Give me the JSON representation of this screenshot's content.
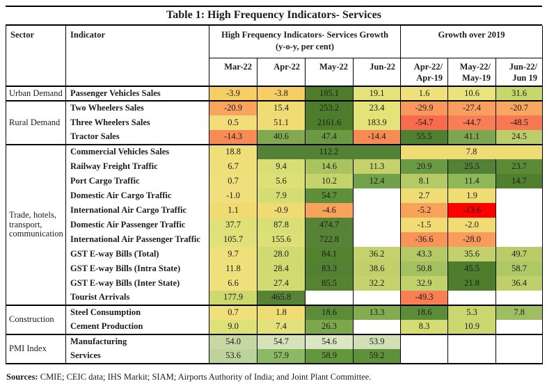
{
  "title": "Table 1: High Frequency Indicators- Services",
  "header": {
    "sector": "Sector",
    "indicator": "Indicator",
    "group1": "High Frequency Indicators- Services Growth",
    "group1_sub": "(y-o-y, per cent)",
    "group2": "Growth over 2019",
    "cols": [
      "Mar-22",
      "Apr-22",
      "May-22",
      "Jun-22",
      "Apr-22/\nApr-19",
      "May-22/\nMay-19",
      "Jun-22/\nJun 19"
    ]
  },
  "legend_colors": {
    "strong_negative": "#FE0000",
    "negative": "#F8A25C",
    "neutral": "#F0DC74",
    "positive": "#A9C35F",
    "strong_positive": "#538135"
  },
  "sections": [
    {
      "sector": "Urban Demand",
      "rows": [
        {
          "indicator": "Passenger Vehicles Sales",
          "cells": [
            {
              "v": "-3.9",
              "c": "#F6CE65"
            },
            {
              "v": "-3.8",
              "c": "#F6CE65"
            },
            {
              "v": "185.1",
              "c": "#4E7E2B"
            },
            {
              "v": "19.1",
              "c": "#E4E27A"
            },
            {
              "v": "1.6",
              "c": "#EFE17C"
            },
            {
              "v": "10.6",
              "c": "#E9E47E"
            },
            {
              "v": "31.6",
              "c": "#C6D76C"
            }
          ]
        }
      ]
    },
    {
      "sector": "Rural Demand",
      "rows": [
        {
          "indicator": "Two Wheelers Sales",
          "cells": [
            {
              "v": "-20.9",
              "c": "#F9A45E"
            },
            {
              "v": "15.4",
              "c": "#F0DC74"
            },
            {
              "v": "253.2",
              "c": "#4D7D2B"
            },
            {
              "v": "23.4",
              "c": "#E3E378"
            },
            {
              "v": "-29.9",
              "c": "#F8985C"
            },
            {
              "v": "-27.4",
              "c": "#F89E5E"
            },
            {
              "v": "-20.7",
              "c": "#F9A660"
            }
          ]
        },
        {
          "indicator": "Three Wheelers Sales",
          "cells": [
            {
              "v": "0.5",
              "c": "#F2DD78"
            },
            {
              "v": "51.1",
              "c": "#F0DC74"
            },
            {
              "v": "2161.6",
              "c": "#4D7D2B"
            },
            {
              "v": "183.9",
              "c": "#E3E377"
            },
            {
              "v": "-54.7",
              "c": "#F96B4D"
            },
            {
              "v": "-44.7",
              "c": "#F87E55"
            },
            {
              "v": "-48.5",
              "c": "#F87852"
            }
          ]
        },
        {
          "indicator": "Tractor Sales",
          "cells": [
            {
              "v": "-14.3",
              "c": "#F88B54"
            },
            {
              "v": "40.6",
              "c": "#82A951"
            },
            {
              "v": "47.4",
              "c": "#6B9A43"
            },
            {
              "v": "-14.4",
              "c": "#F88B54"
            },
            {
              "v": "55.5",
              "c": "#4E8030"
            },
            {
              "v": "41.1",
              "c": "#7EA64F"
            },
            {
              "v": "24.5",
              "c": "#BCCD69"
            }
          ]
        }
      ]
    },
    {
      "sector": "Trade, hotels,\ntransport,\ncommunication",
      "rows": [
        {
          "indicator": "Commercial Vehicles Sales",
          "cells": [
            {
              "v": "18.8",
              "c": "#EFDF78"
            },
            {
              "v": "112.2",
              "c": "#538135",
              "span": 3
            },
            {
              "v": "7.8",
              "c": "#F0DC74",
              "span": 3
            }
          ]
        },
        {
          "indicator": "Railway Freight Traffic",
          "cells": [
            {
              "v": "6.7",
              "c": "#EFDF78"
            },
            {
              "v": "9.4",
              "c": "#D8DE74"
            },
            {
              "v": "14.6",
              "c": "#A9C35F"
            },
            {
              "v": "11.3",
              "c": "#C6D16C"
            },
            {
              "v": "20.9",
              "c": "#6A9B43"
            },
            {
              "v": "25.5",
              "c": "#538135"
            },
            {
              "v": "23.7",
              "c": "#5C8B37"
            }
          ]
        },
        {
          "indicator": "Port Cargo Traffic",
          "cells": [
            {
              "v": "0.7",
              "c": "#F0E07C"
            },
            {
              "v": "5.6",
              "c": "#DCE076"
            },
            {
              "v": "10.2",
              "c": "#C4D36A"
            },
            {
              "v": "12.4",
              "c": "#71A14A"
            },
            {
              "v": "8.1",
              "c": "#B5CA67"
            },
            {
              "v": "11.4",
              "c": "#8FB858"
            },
            {
              "v": "14.7",
              "c": "#507F2E"
            }
          ]
        },
        {
          "indicator": "Domestic Air Cargo Traffic",
          "cells": [
            {
              "v": "-1.0",
              "c": "#F1DF7B"
            },
            {
              "v": "7.9",
              "c": "#D5DC72"
            },
            {
              "v": "54.7",
              "c": "#5E8F3A"
            },
            {
              "v": "",
              "c": "#FFFFFF"
            },
            {
              "v": "2.7",
              "c": "#F0DC74"
            },
            {
              "v": "1.9",
              "c": "#F0DC74"
            },
            {
              "v": "",
              "c": "#FFFFFF"
            }
          ]
        },
        {
          "indicator": "International Air Cargo Traffic",
          "cells": [
            {
              "v": "1.1",
              "c": "#F0DB72"
            },
            {
              "v": "-0.9",
              "c": "#F0DB72"
            },
            {
              "v": "-4.6",
              "c": "#F8A25C"
            },
            {
              "v": "",
              "c": "#FFFFFF"
            },
            {
              "v": "-5.2",
              "c": "#F8A25C"
            },
            {
              "v": "-13.6",
              "c": "#FE0000"
            },
            {
              "v": "",
              "c": "#FFFFFF"
            }
          ]
        },
        {
          "indicator": "Domestic Air Passenger Traffic",
          "cells": [
            {
              "v": "37.7",
              "c": "#DFE077"
            },
            {
              "v": "87.8",
              "c": "#D9DF75"
            },
            {
              "v": "474.7",
              "c": "#568336"
            },
            {
              "v": "",
              "c": "#FFFFFF"
            },
            {
              "v": "-1.5",
              "c": "#F1DC73"
            },
            {
              "v": "-2.0",
              "c": "#F1DC73"
            },
            {
              "v": "",
              "c": "#FFFFFF"
            }
          ]
        },
        {
          "indicator": "International Air Passenger Traffic",
          "cells": [
            {
              "v": "105.7",
              "c": "#E0E17A"
            },
            {
              "v": "155.6",
              "c": "#DCE076"
            },
            {
              "v": "722.8",
              "c": "#568336"
            },
            {
              "v": "",
              "c": "#FFFFFF"
            },
            {
              "v": "-36.6",
              "c": "#F8935A"
            },
            {
              "v": "-28.0",
              "c": "#F89B5C"
            },
            {
              "v": "",
              "c": "#FFFFFF"
            }
          ]
        },
        {
          "indicator": "GST E-way Bills (Total)",
          "cells": [
            {
              "v": "9.7",
              "c": "#EFE07B"
            },
            {
              "v": "28.0",
              "c": "#D0DA71"
            },
            {
              "v": "84.1",
              "c": "#54832F"
            },
            {
              "v": "36.2",
              "c": "#C4D16C"
            },
            {
              "v": "43.3",
              "c": "#B5C966"
            },
            {
              "v": "35.6",
              "c": "#C3D16C"
            },
            {
              "v": "49.7",
              "c": "#B9CC68"
            }
          ]
        },
        {
          "indicator": "GST E-way Bills (Intra State)",
          "cells": [
            {
              "v": "11.8",
              "c": "#EEE07B"
            },
            {
              "v": "28.4",
              "c": "#D0DA71"
            },
            {
              "v": "83.3",
              "c": "#538134"
            },
            {
              "v": "38.6",
              "c": "#C2D06B"
            },
            {
              "v": "50.8",
              "c": "#A3C160"
            },
            {
              "v": "45.5",
              "c": "#4E7E2D"
            },
            {
              "v": "58.7",
              "c": "#AFC765"
            }
          ]
        },
        {
          "indicator": "GST E-way Bills (Inter State)",
          "cells": [
            {
              "v": "6.6",
              "c": "#EFE07B"
            },
            {
              "v": "27.4",
              "c": "#D2DB72"
            },
            {
              "v": "85.5",
              "c": "#55832F"
            },
            {
              "v": "32.2",
              "c": "#C6D26D"
            },
            {
              "v": "32.9",
              "c": "#C3D16B"
            },
            {
              "v": "21.8",
              "c": "#4E7E2D"
            },
            {
              "v": "36.4",
              "c": "#BFCF6A"
            }
          ]
        },
        {
          "indicator": "Tourist Arrivals",
          "cells": [
            {
              "v": "177.9",
              "c": "#CDD96F"
            },
            {
              "v": "465.8",
              "c": "#568336"
            },
            {
              "v": "",
              "c": "#FFFFFF"
            },
            {
              "v": "",
              "c": "#FFFFFF"
            },
            {
              "v": "-49.3",
              "c": "#F97E53"
            },
            {
              "v": "",
              "c": "#FFFFFF"
            },
            {
              "v": "",
              "c": "#FFFFFF"
            }
          ]
        }
      ]
    },
    {
      "sector": "Construction",
      "rows": [
        {
          "indicator": "Steel Consumption",
          "cells": [
            {
              "v": "0.7",
              "c": "#F0E07C"
            },
            {
              "v": "1.8",
              "c": "#F0DC74"
            },
            {
              "v": "18.6",
              "c": "#5C8C38"
            },
            {
              "v": "13.3",
              "c": "#83AB50"
            },
            {
              "v": "18.6",
              "c": "#5C8C38"
            },
            {
              "v": "5.3",
              "c": "#CBD66F"
            },
            {
              "v": "7.8",
              "c": "#9FBE61"
            }
          ]
        },
        {
          "indicator": "Cement Production",
          "cells": [
            {
              "v": "9.0",
              "c": "#DEE078"
            },
            {
              "v": "7.4",
              "c": "#E2E17B"
            },
            {
              "v": "26.3",
              "c": "#7CA74C"
            },
            {
              "v": "",
              "c": "#FFFFFF"
            },
            {
              "v": "8.3",
              "c": "#D6DC74"
            },
            {
              "v": "10.9",
              "c": "#CBD76F"
            },
            {
              "v": "",
              "c": "#FFFFFF"
            }
          ]
        }
      ]
    },
    {
      "sector": "PMI Index",
      "rows": [
        {
          "indicator": "Manufacturing",
          "cells": [
            {
              "v": "54.0",
              "c": "#C8D8A4"
            },
            {
              "v": "54.7",
              "c": "#D6E2BC"
            },
            {
              "v": "54.6",
              "c": "#DCE6C4"
            },
            {
              "v": "53.9",
              "c": "#D2E0B8"
            },
            {
              "v": "",
              "c": "#FFFFFF"
            },
            {
              "v": "",
              "c": "#FFFFFF"
            },
            {
              "v": "",
              "c": "#FFFFFF"
            }
          ]
        },
        {
          "indicator": "Services",
          "cells": [
            {
              "v": "53.6",
              "c": "#BCD49C"
            },
            {
              "v": "57.9",
              "c": "#8CB964"
            },
            {
              "v": "58.9",
              "c": "#63973C"
            },
            {
              "v": "59.2",
              "c": "#5E9139"
            },
            {
              "v": "",
              "c": "#FFFFFF"
            },
            {
              "v": "",
              "c": "#FFFFFF"
            },
            {
              "v": "",
              "c": "#FFFFFF"
            }
          ]
        }
      ]
    }
  ],
  "footer": {
    "label": "Sources:",
    "text": " CMIE; CEIC data; IHS Markit; SIAM; Airports Authority of India; and Joint Plant Committee."
  }
}
